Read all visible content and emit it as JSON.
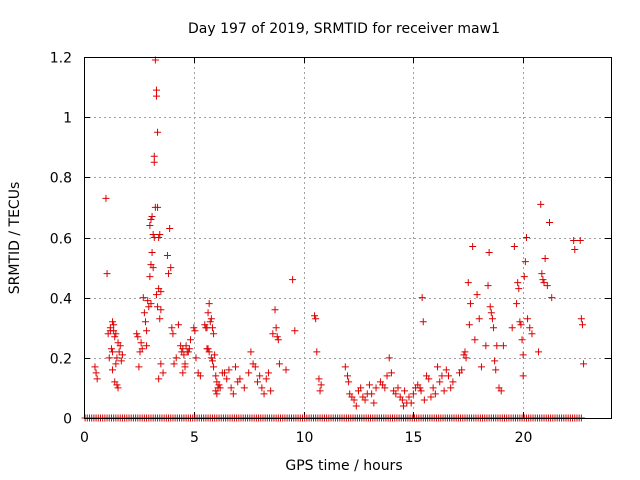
{
  "chart_data": {
    "type": "scatter",
    "title": "Day 197 of 2019, SRMTID for receiver maw1",
    "xlabel": "GPS time / hours",
    "ylabel": "SRMTID / TECUs",
    "xlim": [
      0,
      24
    ],
    "ylim": [
      0,
      1.2
    ],
    "x_ticks": [
      0,
      5,
      10,
      15,
      20
    ],
    "x_tick_labels": [
      "0",
      "5",
      "10",
      "15",
      "20"
    ],
    "y_ticks": [
      0,
      0.2,
      0.4,
      0.6,
      0.8,
      1.0,
      1.2
    ],
    "y_tick_labels": [
      "0",
      "0.2",
      "0.4",
      "0.6",
      "0.8",
      "1",
      "1.2"
    ],
    "grid": true,
    "marker": "+",
    "color": "#dd0000",
    "zero_baseline": {
      "x_start": 0.05,
      "x_end": 22.7,
      "step": 0.1,
      "y": 0
    },
    "series": [
      {
        "name": "SRMTID",
        "points": [
          [
            0.5,
            0.17
          ],
          [
            0.55,
            0.15
          ],
          [
            0.6,
            0.13
          ],
          [
            1.0,
            0.73
          ],
          [
            1.05,
            0.48
          ],
          [
            1.1,
            0.28
          ],
          [
            1.15,
            0.2
          ],
          [
            1.2,
            0.29
          ],
          [
            1.25,
            0.23
          ],
          [
            1.3,
            0.32
          ],
          [
            1.35,
            0.31
          ],
          [
            1.3,
            0.22
          ],
          [
            1.4,
            0.27
          ],
          [
            1.45,
            0.18
          ],
          [
            1.5,
            0.2
          ],
          [
            1.55,
            0.25
          ],
          [
            1.6,
            0.22
          ],
          [
            1.65,
            0.24
          ],
          [
            1.7,
            0.19
          ],
          [
            1.75,
            0.21
          ],
          [
            1.3,
            0.16
          ],
          [
            1.4,
            0.12
          ],
          [
            1.5,
            0.11
          ],
          [
            1.55,
            0.1
          ],
          [
            1.35,
            0.29
          ],
          [
            1.45,
            0.28
          ],
          [
            1.2,
            0.3
          ],
          [
            2.4,
            0.28
          ],
          [
            2.45,
            0.27
          ],
          [
            2.5,
            0.17
          ],
          [
            2.55,
            0.22
          ],
          [
            2.6,
            0.25
          ],
          [
            2.65,
            0.23
          ],
          [
            2.7,
            0.4
          ],
          [
            2.75,
            0.35
          ],
          [
            2.8,
            0.32
          ],
          [
            2.85,
            0.29
          ],
          [
            2.9,
            0.39
          ],
          [
            2.95,
            0.37
          ],
          [
            2.85,
            0.24
          ],
          [
            3.0,
            0.47
          ],
          [
            3.05,
            0.51
          ],
          [
            3.1,
            0.55
          ],
          [
            3.15,
            0.5
          ],
          [
            3.05,
            0.38
          ],
          [
            3.0,
            0.64
          ],
          [
            3.05,
            0.66
          ],
          [
            3.1,
            0.67
          ],
          [
            3.15,
            0.61
          ],
          [
            3.2,
            0.6
          ],
          [
            3.25,
            0.7
          ],
          [
            3.2,
            0.85
          ],
          [
            3.2,
            0.87
          ],
          [
            3.25,
            1.19
          ],
          [
            3.3,
            1.09
          ],
          [
            3.3,
            1.07
          ],
          [
            3.35,
            0.95
          ],
          [
            3.35,
            0.7
          ],
          [
            3.4,
            0.6
          ],
          [
            3.45,
            0.61
          ],
          [
            3.4,
            0.43
          ],
          [
            3.5,
            0.42
          ],
          [
            3.45,
            0.33
          ],
          [
            3.5,
            0.36
          ],
          [
            3.3,
            0.41
          ],
          [
            3.35,
            0.37
          ],
          [
            3.4,
            0.13
          ],
          [
            3.5,
            0.18
          ],
          [
            3.6,
            0.15
          ],
          [
            3.8,
            0.54
          ],
          [
            3.85,
            0.48
          ],
          [
            3.9,
            0.63
          ],
          [
            3.95,
            0.5
          ],
          [
            4.0,
            0.3
          ],
          [
            4.05,
            0.28
          ],
          [
            4.1,
            0.18
          ],
          [
            4.2,
            0.2
          ],
          [
            4.3,
            0.31
          ],
          [
            4.4,
            0.24
          ],
          [
            4.5,
            0.23
          ],
          [
            4.45,
            0.22
          ],
          [
            4.55,
            0.21
          ],
          [
            4.6,
            0.17
          ],
          [
            4.65,
            0.24
          ],
          [
            4.7,
            0.22
          ],
          [
            4.75,
            0.22
          ],
          [
            4.8,
            0.23
          ],
          [
            4.85,
            0.26
          ],
          [
            4.5,
            0.15
          ],
          [
            4.6,
            0.18
          ],
          [
            5.0,
            0.3
          ],
          [
            5.05,
            0.29
          ],
          [
            5.1,
            0.2
          ],
          [
            5.2,
            0.15
          ],
          [
            5.3,
            0.14
          ],
          [
            5.5,
            0.31
          ],
          [
            5.55,
            0.3
          ],
          [
            5.6,
            0.3
          ],
          [
            5.65,
            0.35
          ],
          [
            5.7,
            0.38
          ],
          [
            5.75,
            0.32
          ],
          [
            5.8,
            0.33
          ],
          [
            5.85,
            0.3
          ],
          [
            5.9,
            0.28
          ],
          [
            5.6,
            0.23
          ],
          [
            5.65,
            0.23
          ],
          [
            5.7,
            0.22
          ],
          [
            5.8,
            0.2
          ],
          [
            5.85,
            0.19
          ],
          [
            5.9,
            0.17
          ],
          [
            5.95,
            0.21
          ],
          [
            6.0,
            0.14
          ],
          [
            6.05,
            0.12
          ],
          [
            6.0,
            0.09
          ],
          [
            6.05,
            0.08
          ],
          [
            6.1,
            0.1
          ],
          [
            6.15,
            0.11
          ],
          [
            6.2,
            0.1
          ],
          [
            6.3,
            0.15
          ],
          [
            6.4,
            0.15
          ],
          [
            6.5,
            0.13
          ],
          [
            6.6,
            0.16
          ],
          [
            6.7,
            0.1
          ],
          [
            6.8,
            0.08
          ],
          [
            6.9,
            0.17
          ],
          [
            7.0,
            0.12
          ],
          [
            7.1,
            0.13
          ],
          [
            7.3,
            0.1
          ],
          [
            7.5,
            0.15
          ],
          [
            7.6,
            0.22
          ],
          [
            7.7,
            0.18
          ],
          [
            7.8,
            0.17
          ],
          [
            7.9,
            0.12
          ],
          [
            8.0,
            0.14
          ],
          [
            8.1,
            0.1
          ],
          [
            8.2,
            0.08
          ],
          [
            8.3,
            0.13
          ],
          [
            8.4,
            0.15
          ],
          [
            8.5,
            0.09
          ],
          [
            8.6,
            0.28
          ],
          [
            8.7,
            0.36
          ],
          [
            8.75,
            0.3
          ],
          [
            8.8,
            0.27
          ],
          [
            8.85,
            0.26
          ],
          [
            8.9,
            0.18
          ],
          [
            9.2,
            0.16
          ],
          [
            9.5,
            0.46
          ],
          [
            9.6,
            0.29
          ],
          [
            10.5,
            0.34
          ],
          [
            10.55,
            0.33
          ],
          [
            10.6,
            0.22
          ],
          [
            10.7,
            0.13
          ],
          [
            10.8,
            0.11
          ],
          [
            10.75,
            0.09
          ],
          [
            11.9,
            0.17
          ],
          [
            12.0,
            0.14
          ],
          [
            12.05,
            0.12
          ],
          [
            12.1,
            0.08
          ],
          [
            12.2,
            0.07
          ],
          [
            12.3,
            0.06
          ],
          [
            12.4,
            0.04
          ],
          [
            12.5,
            0.09
          ],
          [
            12.6,
            0.1
          ],
          [
            12.7,
            0.07
          ],
          [
            12.8,
            0.06
          ],
          [
            12.9,
            0.08
          ],
          [
            13.0,
            0.11
          ],
          [
            13.1,
            0.08
          ],
          [
            13.2,
            0.05
          ],
          [
            13.3,
            0.1
          ],
          [
            13.5,
            0.12
          ],
          [
            13.6,
            0.11
          ],
          [
            13.7,
            0.1
          ],
          [
            13.8,
            0.14
          ],
          [
            13.9,
            0.2
          ],
          [
            14.0,
            0.15
          ],
          [
            14.1,
            0.09
          ],
          [
            14.2,
            0.08
          ],
          [
            14.3,
            0.1
          ],
          [
            14.4,
            0.07
          ],
          [
            14.5,
            0.06
          ],
          [
            14.55,
            0.04
          ],
          [
            14.6,
            0.09
          ],
          [
            14.7,
            0.05
          ],
          [
            14.8,
            0.07
          ],
          [
            14.9,
            0.05
          ],
          [
            15.0,
            0.08
          ],
          [
            15.1,
            0.1
          ],
          [
            15.2,
            0.11
          ],
          [
            15.3,
            0.1
          ],
          [
            15.35,
            0.09
          ],
          [
            15.4,
            0.4
          ],
          [
            15.45,
            0.32
          ],
          [
            15.5,
            0.06
          ],
          [
            15.6,
            0.14
          ],
          [
            15.7,
            0.13
          ],
          [
            15.8,
            0.07
          ],
          [
            15.9,
            0.1
          ],
          [
            16.0,
            0.08
          ],
          [
            16.1,
            0.17
          ],
          [
            16.2,
            0.12
          ],
          [
            16.3,
            0.14
          ],
          [
            16.4,
            0.09
          ],
          [
            16.5,
            0.16
          ],
          [
            16.6,
            0.14
          ],
          [
            16.7,
            0.1
          ],
          [
            16.8,
            0.12
          ],
          [
            17.1,
            0.15
          ],
          [
            17.2,
            0.16
          ],
          [
            17.3,
            0.21
          ],
          [
            17.35,
            0.22
          ],
          [
            17.4,
            0.2
          ],
          [
            17.5,
            0.45
          ],
          [
            17.55,
            0.31
          ],
          [
            17.6,
            0.38
          ],
          [
            17.7,
            0.57
          ],
          [
            17.8,
            0.26
          ],
          [
            17.9,
            0.41
          ],
          [
            18.0,
            0.33
          ],
          [
            18.1,
            0.17
          ],
          [
            18.3,
            0.24
          ],
          [
            18.4,
            0.44
          ],
          [
            18.45,
            0.55
          ],
          [
            18.5,
            0.37
          ],
          [
            18.55,
            0.35
          ],
          [
            18.6,
            0.33
          ],
          [
            18.65,
            0.3
          ],
          [
            18.7,
            0.19
          ],
          [
            18.75,
            0.16
          ],
          [
            18.8,
            0.24
          ],
          [
            18.9,
            0.1
          ],
          [
            19.0,
            0.09
          ],
          [
            19.1,
            0.24
          ],
          [
            19.5,
            0.3
          ],
          [
            19.6,
            0.57
          ],
          [
            19.7,
            0.38
          ],
          [
            19.75,
            0.45
          ],
          [
            19.8,
            0.43
          ],
          [
            19.85,
            0.32
          ],
          [
            19.9,
            0.31
          ],
          [
            19.95,
            0.26
          ],
          [
            20.0,
            0.21
          ],
          [
            20.0,
            0.14
          ],
          [
            20.05,
            0.47
          ],
          [
            20.1,
            0.52
          ],
          [
            20.15,
            0.6
          ],
          [
            20.2,
            0.33
          ],
          [
            20.3,
            0.3
          ],
          [
            20.4,
            0.28
          ],
          [
            20.7,
            0.22
          ],
          [
            20.8,
            0.71
          ],
          [
            20.85,
            0.48
          ],
          [
            20.9,
            0.46
          ],
          [
            20.95,
            0.45
          ],
          [
            21.0,
            0.53
          ],
          [
            21.1,
            0.44
          ],
          [
            21.2,
            0.65
          ],
          [
            21.3,
            0.4
          ],
          [
            22.3,
            0.59
          ],
          [
            22.35,
            0.56
          ],
          [
            22.6,
            0.59
          ],
          [
            22.65,
            0.33
          ],
          [
            22.7,
            0.31
          ],
          [
            22.75,
            0.18
          ]
        ]
      }
    ]
  }
}
